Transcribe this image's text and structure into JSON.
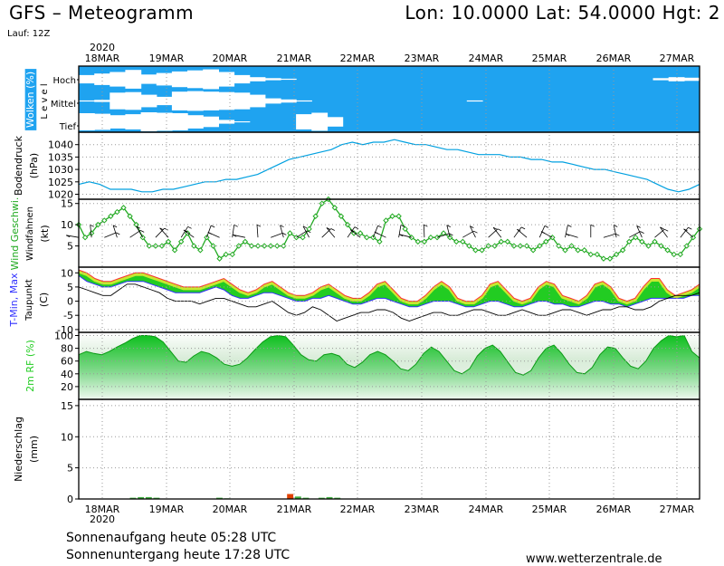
{
  "header": {
    "title_left": "GFS – Meteogramm",
    "title_right": "Lon: 10.0000 Lat: 54.0000 Hgt: 2",
    "run": "Lauf: 12Z"
  },
  "footer": {
    "sunrise": "Sonnenaufgang heute 05:28 UTC",
    "sunset": "Sonnenuntergang heute 17:28 UTC",
    "website": "www.wetterzentrale.de"
  },
  "colors": {
    "cloud_blue": "#1fa3f0",
    "pressure_line": "#00a0e0",
    "wind_green": "#22aa22",
    "tmax_red": "#ff3030",
    "tmin_blue": "#3030ff",
    "fill_green": "#22cc22",
    "fill_yellow": "#c8e830",
    "grid": "#999999"
  },
  "chart_data": {
    "type": "line",
    "year_top": "2020",
    "year_bottom": "2020",
    "days": [
      "18MAR",
      "19MAR",
      "20MAR",
      "21MAR",
      "22MAR",
      "23MAR",
      "24MAR",
      "25MAR",
      "26MAR",
      "27MAR"
    ],
    "panels": [
      {
        "id": "clouds",
        "type": "heatmap",
        "ylabel": "Wolken (%)",
        "ylabel2": "L e v e l",
        "levels": [
          "Hoch",
          "Mittel",
          "Tief"
        ],
        "series": [
          {
            "name": "Hoch",
            "values": [
              60,
              45,
              30,
              10,
              55,
              40,
              25,
              15,
              5,
              30,
              60,
              80,
              90,
              95,
              100,
              100,
              100,
              100,
              100,
              100,
              100,
              100,
              100,
              100,
              100,
              100,
              100,
              100,
              100,
              100,
              100,
              100,
              100,
              100,
              100,
              100,
              100,
              90,
              80,
              85
            ]
          },
          {
            "name": "Mittel",
            "values": [
              95,
              90,
              20,
              15,
              40,
              60,
              10,
              5,
              10,
              15,
              20,
              40,
              75,
              85,
              95,
              100,
              100,
              100,
              100,
              100,
              100,
              100,
              100,
              100,
              100,
              95,
              100,
              100,
              100,
              100,
              100,
              100,
              100,
              100,
              100,
              100,
              100,
              100,
              100,
              100
            ]
          },
          {
            "name": "Tief",
            "values": [
              10,
              15,
              30,
              20,
              0,
              5,
              10,
              30,
              45,
              80,
              95,
              98,
              100,
              100,
              20,
              5,
              50,
              100,
              100,
              100,
              100,
              100,
              100,
              100,
              100,
              100,
              100,
              100,
              100,
              100,
              100,
              100,
              100,
              100,
              100,
              100,
              100,
              100,
              100,
              100
            ]
          }
        ]
      },
      {
        "id": "pressure",
        "ylabel": "Bodendruck",
        "unit": "(hPa)",
        "ylim": [
          1018,
          1045
        ],
        "ticks": [
          1020,
          1025,
          1030,
          1035,
          1040
        ],
        "series": [
          {
            "name": "Bodendruck",
            "values": [
              1024,
              1025,
              1024,
              1022,
              1022,
              1022,
              1021,
              1021,
              1022,
              1022,
              1023,
              1024,
              1025,
              1025,
              1026,
              1026,
              1027,
              1028,
              1030,
              1032,
              1034,
              1035,
              1036,
              1037,
              1038,
              1040,
              1041,
              1040,
              1041,
              1041,
              1042,
              1041,
              1040,
              1040,
              1039,
              1038,
              1038,
              1037,
              1036,
              1036,
              1036,
              1035,
              1035,
              1034,
              1034,
              1033,
              1033,
              1032,
              1031,
              1030,
              1030,
              1029,
              1028,
              1027,
              1026,
              1024,
              1022,
              1021,
              1022,
              1024
            ]
          }
        ]
      },
      {
        "id": "wind",
        "ylabel": "Wind Geschwi.",
        "ylabel2": "Windfahnen",
        "unit": "(kt)",
        "ylim": [
          0,
          16
        ],
        "ticks": [
          5,
          10,
          15
        ],
        "series": [
          {
            "name": "Wind Geschwi.",
            "values": [
              10,
              7,
              8,
              10,
              11,
              12,
              13,
              14,
              12,
              10,
              7,
              5,
              5,
              5,
              6,
              4,
              6,
              8,
              5,
              4,
              7,
              5,
              2,
              3,
              3,
              5,
              6,
              5,
              5,
              5,
              5,
              5,
              5,
              8,
              7,
              7,
              9,
              12,
              15,
              16,
              14,
              12,
              10,
              8,
              8,
              7,
              7,
              6,
              11,
              12,
              12,
              9,
              7,
              6,
              6,
              7,
              7,
              8,
              7,
              6,
              6,
              5,
              4,
              4,
              5,
              5,
              6,
              6,
              5,
              5,
              5,
              4,
              5,
              6,
              7,
              5,
              4,
              5,
              4,
              4,
              3,
              3,
              2,
              2,
              3,
              4,
              6,
              7,
              6,
              5,
              6,
              5,
              4,
              3,
              3,
              5,
              7,
              9
            ]
          }
        ]
      },
      {
        "id": "temperature",
        "ylabel": "T-Min, Max",
        "ylabel2": "Taupunkt",
        "unit": "(C)",
        "ylim": [
          -11,
          12
        ],
        "ticks": [
          -10,
          -5,
          0,
          5,
          10
        ],
        "series": [
          {
            "name": "T-Max",
            "values": [
              11,
              10,
              8,
              7,
              7,
              8,
              9,
              10,
              10,
              9,
              8,
              7,
              6,
              5,
              5,
              5,
              6,
              7,
              8,
              6,
              4,
              3,
              4,
              6,
              7,
              5,
              3,
              2,
              2,
              3,
              5,
              6,
              4,
              2,
              1,
              1,
              3,
              6,
              7,
              4,
              1,
              0,
              0,
              2,
              5,
              7,
              5,
              1,
              0,
              0,
              2,
              6,
              7,
              4,
              1,
              0,
              1,
              5,
              7,
              6,
              2,
              1,
              0,
              2,
              6,
              7,
              5,
              1,
              0,
              1,
              5,
              8,
              8,
              4,
              2,
              3,
              4,
              6
            ]
          },
          {
            "name": "T-Min",
            "values": [
              9,
              7,
              6,
              5,
              5,
              6,
              7,
              7,
              7,
              6,
              5,
              4,
              3,
              3,
              3,
              3,
              4,
              5,
              4,
              2,
              1,
              1,
              2,
              3,
              3,
              2,
              1,
              0,
              0,
              1,
              1,
              2,
              1,
              0,
              -1,
              -1,
              0,
              1,
              1,
              0,
              -1,
              -2,
              -2,
              -1,
              0,
              0,
              0,
              -1,
              -2,
              -2,
              -1,
              0,
              0,
              -1,
              -2,
              -2,
              -1,
              0,
              0,
              -1,
              -1,
              -2,
              -2,
              -1,
              0,
              0,
              -1,
              -1,
              -2,
              -1,
              0,
              1,
              1,
              1,
              1,
              1,
              2,
              2
            ]
          },
          {
            "name": "Taupunkt",
            "values": [
              5,
              4,
              3,
              2,
              2,
              4,
              6,
              6,
              5,
              4,
              3,
              1,
              0,
              0,
              0,
              -1,
              0,
              1,
              1,
              0,
              -1,
              -2,
              -2,
              -1,
              0,
              -2,
              -4,
              -5,
              -4,
              -2,
              -3,
              -5,
              -7,
              -6,
              -5,
              -4,
              -4,
              -3,
              -3,
              -4,
              -6,
              -7,
              -6,
              -5,
              -4,
              -4,
              -5,
              -5,
              -4,
              -3,
              -3,
              -4,
              -5,
              -5,
              -4,
              -3,
              -4,
              -5,
              -5,
              -4,
              -3,
              -3,
              -4,
              -5,
              -4,
              -3,
              -3,
              -2,
              -2,
              -3,
              -3,
              -2,
              0,
              1,
              2,
              2,
              2,
              3
            ]
          }
        ]
      },
      {
        "id": "humidity",
        "type": "area",
        "ylabel": "2m RF (%)",
        "ylim": [
          0,
          105
        ],
        "ticks": [
          20,
          40,
          60,
          80,
          100
        ],
        "series": [
          {
            "name": "2m RF",
            "values": [
              70,
              75,
              72,
              70,
              75,
              82,
              88,
              95,
              100,
              100,
              98,
              90,
              75,
              60,
              58,
              68,
              75,
              72,
              65,
              55,
              52,
              55,
              65,
              78,
              90,
              98,
              100,
              98,
              85,
              70,
              62,
              60,
              70,
              72,
              68,
              55,
              50,
              58,
              70,
              75,
              70,
              60,
              48,
              45,
              55,
              72,
              82,
              75,
              60,
              45,
              40,
              48,
              68,
              80,
              85,
              75,
              58,
              42,
              38,
              45,
              65,
              80,
              85,
              72,
              55,
              42,
              40,
              50,
              70,
              82,
              80,
              65,
              52,
              48,
              60,
              80,
              92,
              100,
              98,
              100,
              75,
              65
            ]
          }
        ]
      },
      {
        "id": "precip",
        "type": "bar",
        "ylabel": "Niederschlag",
        "unit": "(mm)",
        "ylim": [
          0,
          16
        ],
        "ticks": [
          0,
          5,
          10,
          15
        ],
        "series": [
          {
            "name": "Niederschlag",
            "values": [
              0,
              0,
              0,
              0,
              0,
              0,
              0,
              0.2,
              0.3,
              0.3,
              0.2,
              0,
              0,
              0,
              0,
              0,
              0,
              0,
              0.2,
              0.1,
              0,
              0,
              0,
              0,
              0,
              0,
              0,
              0.8,
              0.4,
              0.2,
              0,
              0.2,
              0.3,
              0.2,
              0,
              0,
              0,
              0,
              0,
              0,
              0,
              0,
              0,
              0,
              0,
              0,
              0,
              0,
              0,
              0,
              0,
              0,
              0,
              0,
              0,
              0,
              0,
              0,
              0,
              0,
              0,
              0,
              0,
              0,
              0,
              0,
              0,
              0,
              0,
              0,
              0,
              0,
              0,
              0,
              0,
              0,
              0,
              0,
              0,
              0
            ]
          }
        ]
      }
    ]
  }
}
